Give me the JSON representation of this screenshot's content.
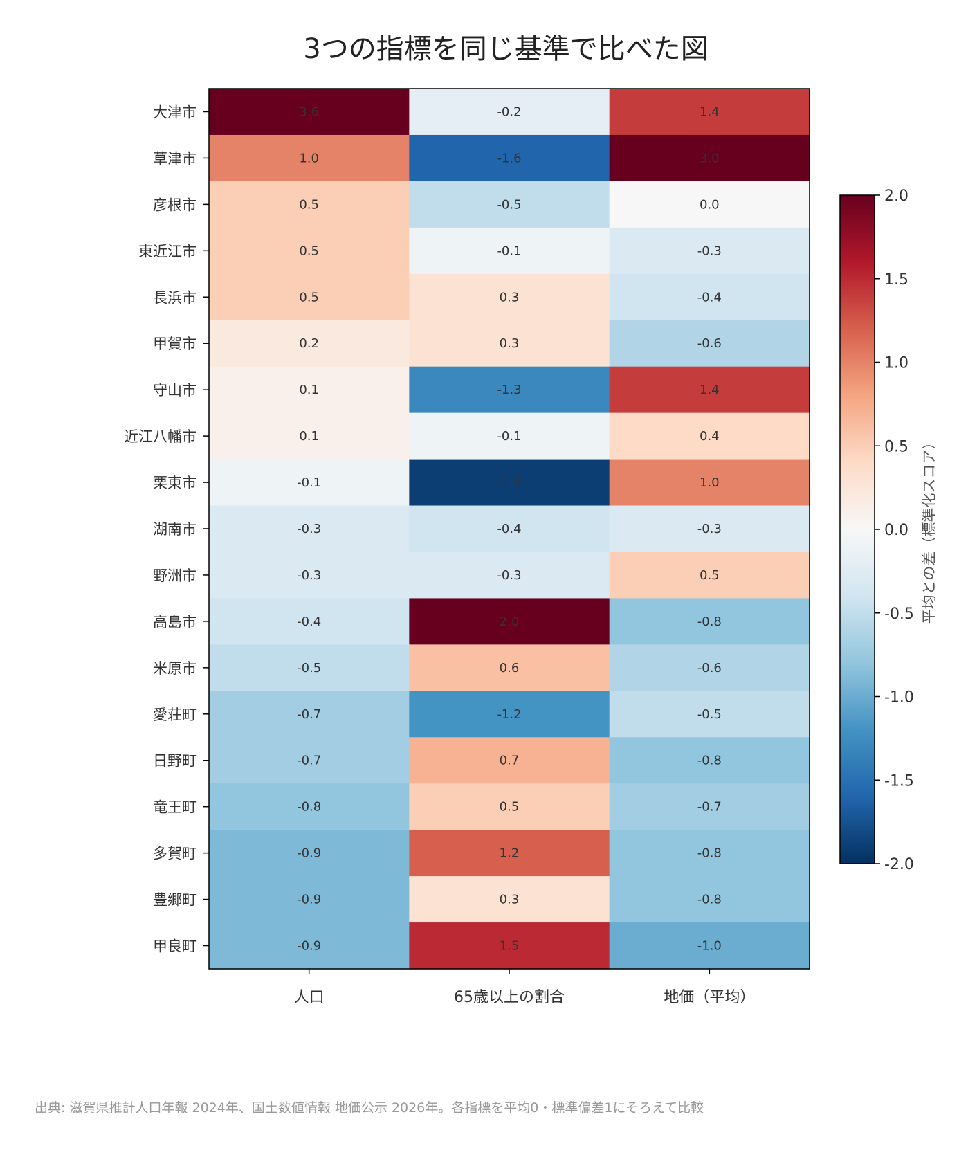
{
  "chart_data": {
    "type": "heatmap",
    "title": "3つの指標を同じ基準で比べた図",
    "columns": [
      "人口",
      "65歳以上の割合",
      "地価（平均）"
    ],
    "rows": [
      "大津市",
      "草津市",
      "彦根市",
      "東近江市",
      "長浜市",
      "甲賀市",
      "守山市",
      "近江八幡市",
      "栗東市",
      "湖南市",
      "野洲市",
      "高島市",
      "米原市",
      "愛荘町",
      "日野町",
      "竜王町",
      "多賀町",
      "豊郷町",
      "甲良町"
    ],
    "values": [
      [
        3.6,
        -0.2,
        1.4
      ],
      [
        1.0,
        -1.6,
        3.0
      ],
      [
        0.5,
        -0.5,
        0.0
      ],
      [
        0.5,
        -0.1,
        -0.3
      ],
      [
        0.5,
        0.3,
        -0.4
      ],
      [
        0.2,
        0.3,
        -0.6
      ],
      [
        0.1,
        -1.3,
        1.4
      ],
      [
        0.1,
        -0.1,
        0.4
      ],
      [
        -0.1,
        -1.9,
        1.0
      ],
      [
        -0.3,
        -0.4,
        -0.3
      ],
      [
        -0.3,
        -0.3,
        0.5
      ],
      [
        -0.4,
        2.0,
        -0.8
      ],
      [
        -0.5,
        0.6,
        -0.6
      ],
      [
        -0.7,
        -1.2,
        -0.5
      ],
      [
        -0.7,
        0.7,
        -0.8
      ],
      [
        -0.8,
        0.5,
        -0.7
      ],
      [
        -0.9,
        1.2,
        -0.8
      ],
      [
        -0.9,
        0.3,
        -0.8
      ],
      [
        -0.9,
        1.5,
        -1.0
      ]
    ],
    "colorbar": {
      "label": "平均との差（標準化スコア）",
      "range": [
        -2.0,
        2.0
      ],
      "ticks": [
        "2.0",
        "1.5",
        "1.0",
        "0.5",
        "0.0",
        "-0.5",
        "-1.0",
        "-1.5",
        "-2.0"
      ],
      "colormap": "RdBu_r"
    },
    "source": "出典: 滋賀県推計人口年報 2024年、国土数値情報 地価公示 2026年。各指標を平均0・標準偏差1にそろえて比較"
  }
}
